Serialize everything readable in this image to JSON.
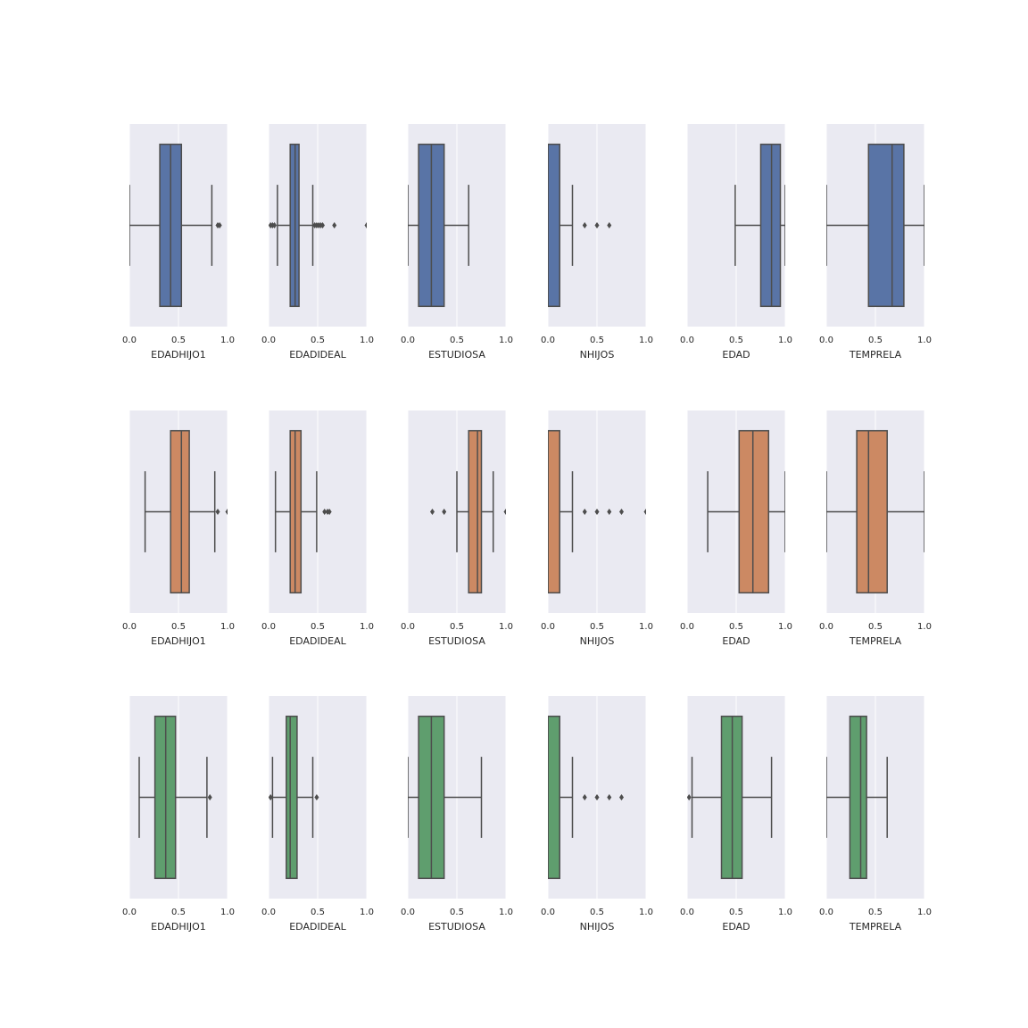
{
  "chart_data": {
    "type": "box",
    "layout": "3 rows x 6 columns",
    "grid": true,
    "xlim": [
      0.0,
      1.0
    ],
    "ticks": [
      0.0,
      0.5,
      1.0
    ],
    "tick_labels": [
      "0.0",
      "0.5",
      "1.0"
    ],
    "box_edge_color": "#4d4d4d",
    "rows": [
      {
        "color": "#5974a6",
        "panels": [
          {
            "xlabel": "EDADHIJO1",
            "whislo": 0.0,
            "q1": 0.31,
            "med": 0.42,
            "q3": 0.53,
            "whishi": 0.84,
            "fliers": [
              0.9,
              0.92
            ]
          },
          {
            "xlabel": "EDADIDEAL",
            "whislo": 0.09,
            "q1": 0.22,
            "med": 0.27,
            "q3": 0.31,
            "whishi": 0.45,
            "fliers": [
              0.02,
              0.04,
              0.06,
              0.47,
              0.49,
              0.51,
              0.53,
              0.55,
              0.67,
              1.0
            ]
          },
          {
            "xlabel": "ESTUDIOSA",
            "whislo": 0.0,
            "q1": 0.11,
            "med": 0.24,
            "q3": 0.37,
            "whishi": 0.62,
            "fliers": []
          },
          {
            "xlabel": "NHIJOS",
            "whislo": 0.0,
            "q1": 0.0,
            "med": 0.0,
            "q3": 0.12,
            "whishi": 0.25,
            "fliers": [
              0.375,
              0.5,
              0.625
            ]
          },
          {
            "xlabel": "EDAD",
            "whislo": 0.49,
            "q1": 0.75,
            "med": 0.86,
            "q3": 0.95,
            "whishi": 1.0,
            "fliers": []
          },
          {
            "xlabel": "TEMPRELA",
            "whislo": 0.0,
            "q1": 0.43,
            "med": 0.67,
            "q3": 0.79,
            "whishi": 1.0,
            "fliers": []
          }
        ]
      },
      {
        "color": "#cc8963",
        "panels": [
          {
            "xlabel": "EDADHIJO1",
            "whislo": 0.16,
            "q1": 0.42,
            "med": 0.53,
            "q3": 0.61,
            "whishi": 0.87,
            "fliers": [
              0.9,
              1.0
            ]
          },
          {
            "xlabel": "EDADIDEAL",
            "whislo": 0.07,
            "q1": 0.22,
            "med": 0.27,
            "q3": 0.33,
            "whishi": 0.49,
            "fliers": [
              0.57,
              0.6,
              0.62
            ]
          },
          {
            "xlabel": "ESTUDIOSA",
            "whislo": 0.5,
            "q1": 0.62,
            "med": 0.71,
            "q3": 0.75,
            "whishi": 0.87,
            "fliers": [
              0.25,
              0.37,
              1.0
            ]
          },
          {
            "xlabel": "NHIJOS",
            "whislo": 0.0,
            "q1": 0.0,
            "med": 0.0,
            "q3": 0.12,
            "whishi": 0.25,
            "fliers": [
              0.375,
              0.5,
              0.625,
              0.75,
              1.0
            ]
          },
          {
            "xlabel": "EDAD",
            "whislo": 0.21,
            "q1": 0.53,
            "med": 0.67,
            "q3": 0.83,
            "whishi": 1.0,
            "fliers": []
          },
          {
            "xlabel": "TEMPRELA",
            "whislo": 0.0,
            "q1": 0.31,
            "med": 0.43,
            "q3": 0.62,
            "whishi": 1.0,
            "fliers": []
          }
        ]
      },
      {
        "color": "#5f9e6e",
        "panels": [
          {
            "xlabel": "EDADHIJO1",
            "whislo": 0.1,
            "q1": 0.26,
            "med": 0.37,
            "q3": 0.47,
            "whishi": 0.79,
            "fliers": [
              0.82
            ]
          },
          {
            "xlabel": "EDADIDEAL",
            "whislo": 0.04,
            "q1": 0.18,
            "med": 0.22,
            "q3": 0.29,
            "whishi": 0.45,
            "fliers": [
              0.02,
              0.49
            ]
          },
          {
            "xlabel": "ESTUDIOSA",
            "whislo": 0.0,
            "q1": 0.11,
            "med": 0.24,
            "q3": 0.37,
            "whishi": 0.75,
            "fliers": []
          },
          {
            "xlabel": "NHIJOS",
            "whislo": 0.0,
            "q1": 0.0,
            "med": 0.0,
            "q3": 0.12,
            "whishi": 0.25,
            "fliers": [
              0.375,
              0.5,
              0.625,
              0.75
            ]
          },
          {
            "xlabel": "EDAD",
            "whislo": 0.05,
            "q1": 0.35,
            "med": 0.46,
            "q3": 0.56,
            "whishi": 0.86,
            "fliers": [
              0.02
            ]
          },
          {
            "xlabel": "TEMPRELA",
            "whislo": 0.0,
            "q1": 0.24,
            "med": 0.35,
            "q3": 0.41,
            "whishi": 0.62,
            "fliers": []
          }
        ]
      }
    ]
  }
}
